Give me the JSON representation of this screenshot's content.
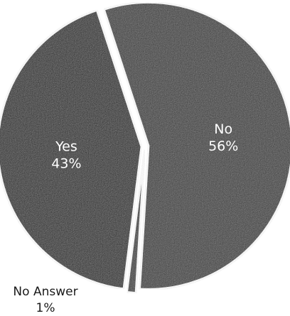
{
  "chart_data": {
    "type": "pie",
    "title": "",
    "slices": [
      {
        "label": "No",
        "value": 56,
        "value_label": "56%",
        "color": "#3a3a3a"
      },
      {
        "label": "No Answer",
        "value": 1,
        "value_label": "1%",
        "color": "#3a3a3a"
      },
      {
        "label": "Yes",
        "value": 43,
        "value_label": "43%",
        "color": "#262626"
      }
    ],
    "legend": "none"
  }
}
